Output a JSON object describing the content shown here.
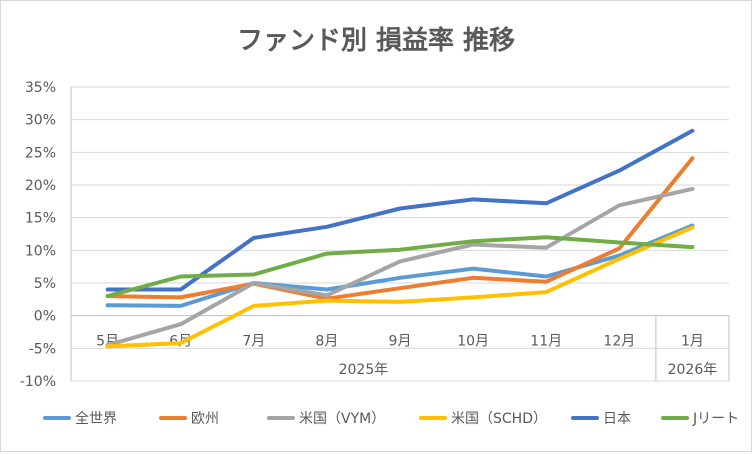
{
  "chart_data": {
    "type": "line",
    "title": "ファンド別 損益率 推移",
    "categories": [
      "5月",
      "6月",
      "7月",
      "8月",
      "9月",
      "10月",
      "11月",
      "12月",
      "1月"
    ],
    "year_groups": [
      {
        "label": "2025年",
        "start": 0,
        "end": 7
      },
      {
        "label": "2026年",
        "start": 8,
        "end": 8
      }
    ],
    "y_ticks": [
      "35%",
      "30%",
      "25%",
      "20%",
      "15%",
      "10%",
      "5%",
      "0%",
      "-5%",
      "-10%"
    ],
    "ylim": [
      -10,
      35
    ],
    "y_step": 5,
    "grid": true,
    "legend_position": "bottom",
    "series": [
      {
        "name": "全世界",
        "color": "#5b9bd5",
        "values": [
          1.6,
          1.5,
          5.0,
          4.0,
          5.8,
          7.2,
          6.0,
          9.2,
          13.8
        ]
      },
      {
        "name": "欧州",
        "color": "#ed7d31",
        "values": [
          3.0,
          2.8,
          4.9,
          2.6,
          4.2,
          5.8,
          5.2,
          10.3,
          24.1
        ]
      },
      {
        "name": "米国（VYM）",
        "color": "#a5a5a5",
        "values": [
          -4.5,
          -1.3,
          5.0,
          3.1,
          8.3,
          10.9,
          10.4,
          16.9,
          19.4
        ]
      },
      {
        "name": "米国（SCHD）",
        "color": "#ffc000",
        "values": [
          -4.7,
          -4.2,
          1.5,
          2.3,
          2.1,
          2.8,
          3.6,
          8.7,
          13.5
        ]
      },
      {
        "name": "日本",
        "color": "#4472c4",
        "values": [
          4.0,
          4.0,
          11.9,
          13.6,
          16.4,
          17.8,
          17.2,
          22.2,
          28.3
        ]
      },
      {
        "name": "Jリート",
        "color": "#70ad47",
        "values": [
          3.0,
          6.0,
          6.3,
          9.5,
          10.1,
          11.4,
          12.0,
          11.2,
          10.5
        ]
      }
    ]
  }
}
